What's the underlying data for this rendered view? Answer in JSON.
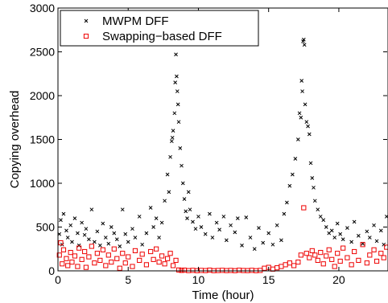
{
  "chart_data": {
    "type": "scatter",
    "xlabel": "Time (hour)",
    "ylabel": "Copying overhead",
    "xlim": [
      0,
      23.5
    ],
    "ylim": [
      0,
      3000
    ],
    "xticks": [
      0,
      5,
      10,
      15,
      20
    ],
    "yticks": [
      0,
      500,
      1000,
      1500,
      2000,
      2500,
      3000
    ],
    "grid": false,
    "legend_position": "top-left",
    "series": [
      {
        "name": "MWPM DFF",
        "marker": "x",
        "color": "#000000",
        "points": [
          [
            0.1,
            420
          ],
          [
            0.2,
            580
          ],
          [
            0.3,
            300
          ],
          [
            0.4,
            650
          ],
          [
            0.6,
            460
          ],
          [
            0.7,
            380
          ],
          [
            0.9,
            520
          ],
          [
            1.0,
            330
          ],
          [
            1.2,
            600
          ],
          [
            1.4,
            430
          ],
          [
            1.5,
            290
          ],
          [
            1.7,
            550
          ],
          [
            1.9,
            410
          ],
          [
            2.0,
            480
          ],
          [
            2.2,
            360
          ],
          [
            2.4,
            700
          ],
          [
            2.6,
            330
          ],
          [
            2.8,
            450
          ],
          [
            3.0,
            290
          ],
          [
            3.2,
            540
          ],
          [
            3.4,
            380
          ],
          [
            3.6,
            310
          ],
          [
            3.8,
            500
          ],
          [
            4.0,
            430
          ],
          [
            4.2,
            360
          ],
          [
            4.4,
            280
          ],
          [
            4.6,
            700
          ],
          [
            4.8,
            420
          ],
          [
            5.0,
            330
          ],
          [
            5.3,
            480
          ],
          [
            5.5,
            380
          ],
          [
            5.8,
            620
          ],
          [
            6.0,
            300
          ],
          [
            6.3,
            430
          ],
          [
            6.6,
            720
          ],
          [
            6.8,
            500
          ],
          [
            7.0,
            600
          ],
          [
            7.2,
            380
          ],
          [
            7.4,
            550
          ],
          [
            7.6,
            800
          ],
          [
            7.8,
            1100
          ],
          [
            7.9,
            900
          ],
          [
            8.0,
            1300
          ],
          [
            8.1,
            1480
          ],
          [
            8.15,
            1520
          ],
          [
            8.2,
            1600
          ],
          [
            8.3,
            1800
          ],
          [
            8.35,
            2150
          ],
          [
            8.4,
            2470
          ],
          [
            8.45,
            2220
          ],
          [
            8.5,
            2050
          ],
          [
            8.55,
            1900
          ],
          [
            8.6,
            1700
          ],
          [
            8.7,
            1400
          ],
          [
            8.8,
            1200
          ],
          [
            8.9,
            1000
          ],
          [
            9.0,
            820
          ],
          [
            9.1,
            680
          ],
          [
            9.2,
            600
          ],
          [
            9.3,
            900
          ],
          [
            9.4,
            700
          ],
          [
            9.6,
            560
          ],
          [
            9.8,
            480
          ],
          [
            10.0,
            620
          ],
          [
            10.2,
            500
          ],
          [
            10.5,
            420
          ],
          [
            10.8,
            650
          ],
          [
            11.0,
            380
          ],
          [
            11.3,
            550
          ],
          [
            11.5,
            470
          ],
          [
            11.8,
            620
          ],
          [
            12.0,
            350
          ],
          [
            12.3,
            520
          ],
          [
            12.6,
            440
          ],
          [
            12.8,
            600
          ],
          [
            13.1,
            290
          ],
          [
            13.4,
            610
          ],
          [
            13.7,
            380
          ],
          [
            14.0,
            250
          ],
          [
            14.3,
            490
          ],
          [
            14.6,
            320
          ],
          [
            15.0,
            430
          ],
          [
            15.3,
            300
          ],
          [
            15.6,
            520
          ],
          [
            15.9,
            350
          ],
          [
            16.1,
            650
          ],
          [
            16.3,
            780
          ],
          [
            16.5,
            970
          ],
          [
            16.7,
            1100
          ],
          [
            16.9,
            1280
          ],
          [
            17.1,
            1500
          ],
          [
            17.2,
            1800
          ],
          [
            17.3,
            1750
          ],
          [
            17.35,
            2170
          ],
          [
            17.4,
            2050
          ],
          [
            17.45,
            2620
          ],
          [
            17.5,
            2640
          ],
          [
            17.55,
            2580
          ],
          [
            17.6,
            1900
          ],
          [
            17.7,
            1700
          ],
          [
            17.8,
            1650
          ],
          [
            17.9,
            1560
          ],
          [
            18.0,
            1230
          ],
          [
            18.1,
            1060
          ],
          [
            18.2,
            950
          ],
          [
            18.3,
            800
          ],
          [
            18.5,
            700
          ],
          [
            18.7,
            620
          ],
          [
            18.9,
            580
          ],
          [
            19.1,
            500
          ],
          [
            19.3,
            430
          ],
          [
            19.5,
            460
          ],
          [
            19.7,
            380
          ],
          [
            19.9,
            540
          ],
          [
            20.1,
            420
          ],
          [
            20.3,
            360
          ],
          [
            20.6,
            490
          ],
          [
            20.9,
            330
          ],
          [
            21.1,
            560
          ],
          [
            21.4,
            400
          ],
          [
            21.7,
            310
          ],
          [
            22.0,
            450
          ],
          [
            22.2,
            380
          ],
          [
            22.5,
            520
          ],
          [
            22.7,
            340
          ],
          [
            23.0,
            460
          ],
          [
            23.2,
            300
          ],
          [
            23.4,
            620
          ]
        ]
      },
      {
        "name": "Swapping−based DFF",
        "marker": "s",
        "color": "#ee0000",
        "points": [
          [
            0.1,
            180
          ],
          [
            0.2,
            320
          ],
          [
            0.3,
            80
          ],
          [
            0.4,
            240
          ],
          [
            0.6,
            140
          ],
          [
            0.7,
            60
          ],
          [
            0.9,
            210
          ],
          [
            1.0,
            100
          ],
          [
            1.2,
            170
          ],
          [
            1.4,
            50
          ],
          [
            1.5,
            260
          ],
          [
            1.7,
            130
          ],
          [
            1.9,
            220
          ],
          [
            2.0,
            40
          ],
          [
            2.2,
            160
          ],
          [
            2.4,
            280
          ],
          [
            2.6,
            90
          ],
          [
            2.8,
            200
          ],
          [
            3.0,
            120
          ],
          [
            3.2,
            240
          ],
          [
            3.4,
            60
          ],
          [
            3.6,
            180
          ],
          [
            3.8,
            100
          ],
          [
            4.0,
            250
          ],
          [
            4.2,
            140
          ],
          [
            4.4,
            30
          ],
          [
            4.6,
            200
          ],
          [
            4.8,
            90
          ],
          [
            5.0,
            160
          ],
          [
            5.3,
            50
          ],
          [
            5.5,
            230
          ],
          [
            5.8,
            120
          ],
          [
            6.0,
            190
          ],
          [
            6.3,
            70
          ],
          [
            6.6,
            220
          ],
          [
            6.8,
            130
          ],
          [
            7.0,
            250
          ],
          [
            7.2,
            100
          ],
          [
            7.4,
            170
          ],
          [
            7.6,
            80
          ],
          [
            7.8,
            140
          ],
          [
            8.0,
            200
          ],
          [
            8.2,
            60
          ],
          [
            8.4,
            120
          ],
          [
            8.6,
            10
          ],
          [
            8.8,
            5
          ],
          [
            9.0,
            8
          ],
          [
            9.3,
            3
          ],
          [
            9.6,
            6
          ],
          [
            9.9,
            2
          ],
          [
            10.2,
            5
          ],
          [
            10.5,
            3
          ],
          [
            10.8,
            8
          ],
          [
            11.1,
            2
          ],
          [
            11.4,
            4
          ],
          [
            11.7,
            6
          ],
          [
            12.0,
            3
          ],
          [
            12.3,
            5
          ],
          [
            12.6,
            2
          ],
          [
            12.9,
            7
          ],
          [
            13.2,
            4
          ],
          [
            13.5,
            3
          ],
          [
            13.8,
            6
          ],
          [
            14.1,
            2
          ],
          [
            14.4,
            5
          ],
          [
            14.7,
            30
          ],
          [
            15.0,
            40
          ],
          [
            15.3,
            20
          ],
          [
            15.6,
            35
          ],
          [
            15.9,
            50
          ],
          [
            16.2,
            70
          ],
          [
            16.5,
            90
          ],
          [
            16.8,
            60
          ],
          [
            17.1,
            100
          ],
          [
            17.3,
            180
          ],
          [
            17.5,
            720
          ],
          [
            17.7,
            200
          ],
          [
            17.9,
            150
          ],
          [
            18.1,
            230
          ],
          [
            18.3,
            180
          ],
          [
            18.5,
            120
          ],
          [
            18.7,
            210
          ],
          [
            18.9,
            80
          ],
          [
            19.1,
            170
          ],
          [
            19.3,
            240
          ],
          [
            19.5,
            130
          ],
          [
            19.7,
            50
          ],
          [
            19.9,
            200
          ],
          [
            20.1,
            110
          ],
          [
            20.3,
            260
          ],
          [
            20.6,
            150
          ],
          [
            20.9,
            70
          ],
          [
            21.1,
            220
          ],
          [
            21.4,
            120
          ],
          [
            21.7,
            300
          ],
          [
            22.0,
            90
          ],
          [
            22.2,
            180
          ],
          [
            22.5,
            240
          ],
          [
            22.7,
            110
          ],
          [
            23.0,
            200
          ],
          [
            23.2,
            150
          ],
          [
            23.4,
            270
          ]
        ]
      }
    ]
  }
}
